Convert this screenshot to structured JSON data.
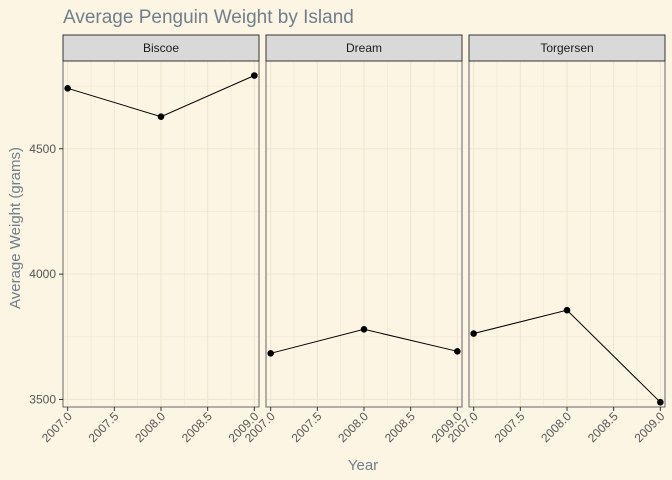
{
  "chart_data": {
    "type": "line",
    "title": "Average Penguin Weight by Island",
    "xlabel": "Year",
    "ylabel": "Average Weight (grams)",
    "xlim": [
      2006.95,
      2009.05
    ],
    "ylim": [
      3470,
      4850
    ],
    "x_ticks": [
      "2007.0",
      "2007.5",
      "2008.0",
      "2008.5",
      "2009.0"
    ],
    "x_tick_values": [
      2007.0,
      2007.5,
      2008.0,
      2008.5,
      2009.0
    ],
    "y_ticks": [
      "3500",
      "4000",
      "4500"
    ],
    "y_tick_values": [
      3500,
      4000,
      4500
    ],
    "grid": true,
    "legend": "none",
    "facets": [
      {
        "label": "Biscoe",
        "x": [
          2007,
          2008,
          2009
        ],
        "values": [
          4741,
          4628,
          4792
        ]
      },
      {
        "label": "Dream",
        "x": [
          2007,
          2008,
          2009
        ],
        "values": [
          3684,
          3780,
          3692
        ]
      },
      {
        "label": "Torgersen",
        "x": [
          2007,
          2008,
          2009
        ],
        "values": [
          3763,
          3856,
          3489
        ]
      }
    ],
    "colors": {
      "background": "#fdf5e4",
      "panel": "#fdf5e4",
      "strip": "#d9d9d9",
      "grid": "#efe6d0",
      "line": "#000000",
      "text": "#6f7f8c"
    }
  }
}
